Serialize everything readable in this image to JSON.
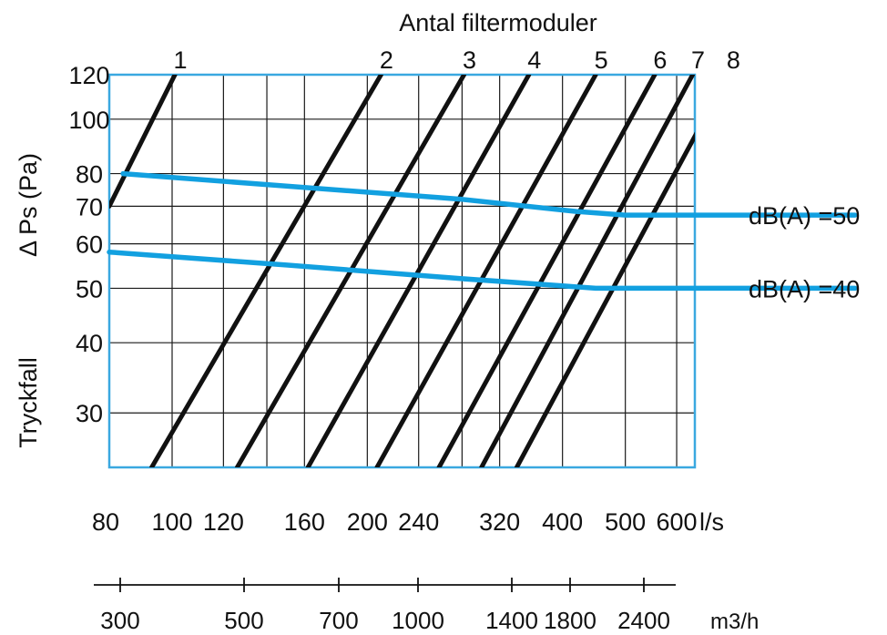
{
  "chart_data": {
    "type": "line",
    "top_title": "Antal filtermoduler",
    "ylabel_main": "Δ Ps (Pa)",
    "ylabel_secondary": "Tryckfall",
    "x_unit_primary": "l/s",
    "x_unit_secondary": "m3/h",
    "x_scale": "log",
    "y_scale": "log",
    "xlim": [
      80,
      640
    ],
    "ylim": [
      24,
      120
    ],
    "grid": true,
    "y_ticks": [
      "120",
      "100",
      "80",
      "70",
      "60",
      "50",
      "40",
      "30"
    ],
    "y_tick_values": [
      120,
      100,
      80,
      70,
      60,
      50,
      40,
      30
    ],
    "x_ticks_ls": [
      "80",
      "100",
      "120",
      "160",
      "200",
      "240",
      "320",
      "400",
      "500",
      "600"
    ],
    "x_tick_values_ls": [
      80,
      100,
      120,
      160,
      200,
      240,
      320,
      400,
      500,
      600
    ],
    "x_ticks_m3h": [
      "300",
      "500",
      "700",
      "1000",
      "1400",
      "1800",
      "2400"
    ],
    "module_labels": [
      "1",
      "2",
      "3",
      "4",
      "5",
      "6",
      "7",
      "8"
    ],
    "module_lines": [
      {
        "label": "1",
        "x": [
          80,
          101
        ],
        "y": [
          70,
          120
        ]
      },
      {
        "label": "2",
        "x": [
          93,
          210
        ],
        "y": [
          24,
          120
        ]
      },
      {
        "label": "3",
        "x": [
          126,
          282
        ],
        "y": [
          24,
          120
        ]
      },
      {
        "label": "4",
        "x": [
          162,
          355
        ],
        "y": [
          24,
          120
        ]
      },
      {
        "label": "5",
        "x": [
          207,
          450
        ],
        "y": [
          24,
          120
        ]
      },
      {
        "label": "6",
        "x": [
          258,
          555
        ],
        "y": [
          24,
          120
        ]
      },
      {
        "label": "7",
        "x": [
          300,
          635
        ],
        "y": [
          24,
          120
        ]
      },
      {
        "label": "8",
        "x": [
          340,
          720
        ],
        "y": [
          24,
          120
        ]
      }
    ],
    "series": [
      {
        "name": "dB(A) =50",
        "x": [
          84,
          150,
          280,
          420,
          500,
          650,
          1130
        ],
        "y": [
          80,
          76,
          72,
          68.5,
          67.5,
          67.5,
          67.5
        ]
      },
      {
        "name": "dB(A) =40",
        "x": [
          80,
          150,
          280,
          400,
          450,
          650,
          1130
        ],
        "y": [
          58,
          55,
          52,
          50.5,
          50,
          50,
          50
        ]
      }
    ]
  },
  "colors": {
    "frame": "#3aa8e0",
    "grid": "#1a1a1a",
    "module_line": "#111111",
    "db_line": "#12a0e0"
  }
}
